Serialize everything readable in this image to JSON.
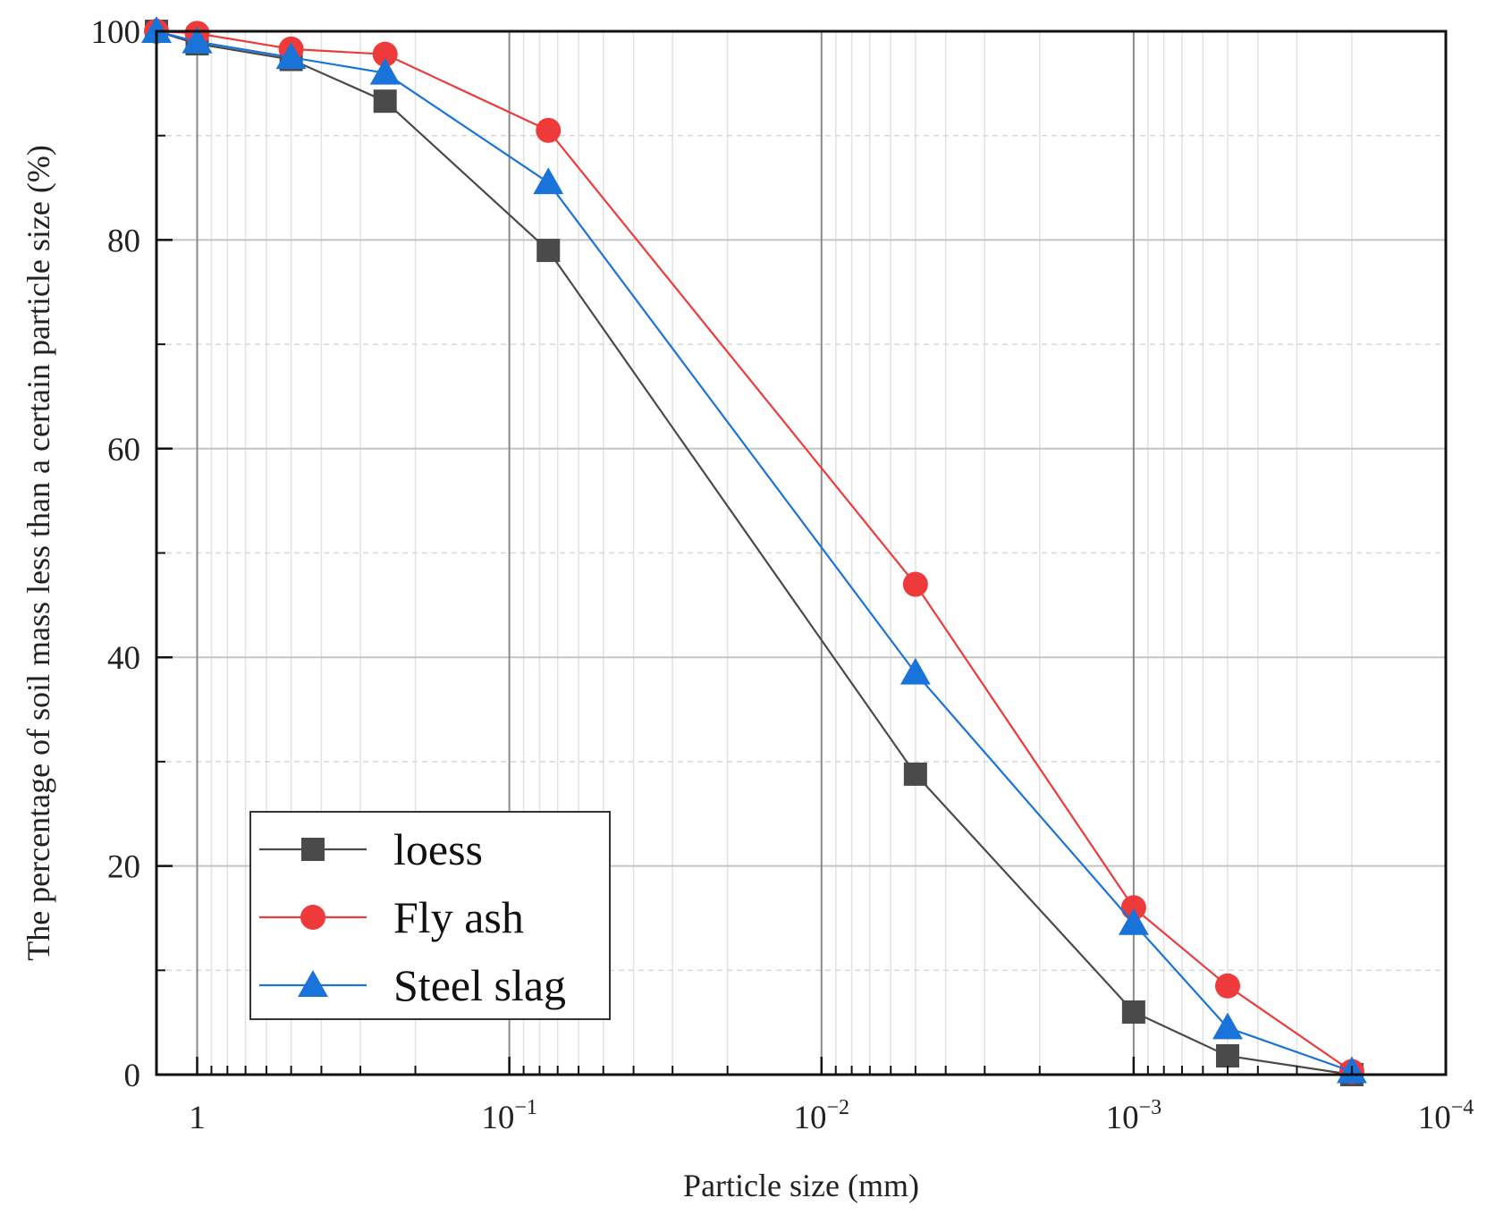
{
  "chart_data": {
    "type": "line",
    "title": "",
    "xlabel": "Particle size (mm)",
    "ylabel": "The percentage of soil mass less than a certain particle size (%)",
    "x_scale": "log-reversed",
    "xlim": [
      1.35,
      0.0001
    ],
    "ylim": [
      0,
      100
    ],
    "x_ticks": [
      {
        "value": 1,
        "base": "1",
        "exp": ""
      },
      {
        "value": 0.1,
        "base": "10",
        "exp": "−1"
      },
      {
        "value": 0.01,
        "base": "10",
        "exp": "−2"
      },
      {
        "value": 0.001,
        "base": "10",
        "exp": "−3"
      },
      {
        "value": 0.0001,
        "base": "10",
        "exp": "−4"
      }
    ],
    "y_ticks": [
      "0",
      "20",
      "40",
      "60",
      "80",
      "100"
    ],
    "grid": true,
    "legend_position": "bottom-left",
    "series": [
      {
        "name": "loess",
        "color": "#4a4a4a",
        "marker": "square",
        "x": [
          1.35,
          1.0,
          0.5,
          0.25,
          0.075,
          0.005,
          0.001,
          0.0005,
          0.0002
        ],
        "y": [
          100,
          98.8,
          97.3,
          93.3,
          79.0,
          28.8,
          6.0,
          1.8,
          0
        ]
      },
      {
        "name": "Fly ash",
        "color": "#ee3a3a",
        "marker": "circle",
        "x": [
          1.35,
          1.0,
          0.5,
          0.25,
          0.075,
          0.005,
          0.001,
          0.0005,
          0.0002
        ],
        "y": [
          100,
          99.8,
          98.3,
          97.8,
          90.5,
          47.0,
          16.0,
          8.5,
          0.3
        ]
      },
      {
        "name": "Steel slag",
        "color": "#1a73d9",
        "marker": "triangle",
        "x": [
          1.35,
          1.0,
          0.5,
          0.25,
          0.075,
          0.005,
          0.001,
          0.0005,
          0.0002
        ],
        "y": [
          100,
          99.0,
          97.5,
          96.0,
          85.5,
          38.5,
          14.5,
          4.5,
          0.3
        ]
      }
    ]
  }
}
